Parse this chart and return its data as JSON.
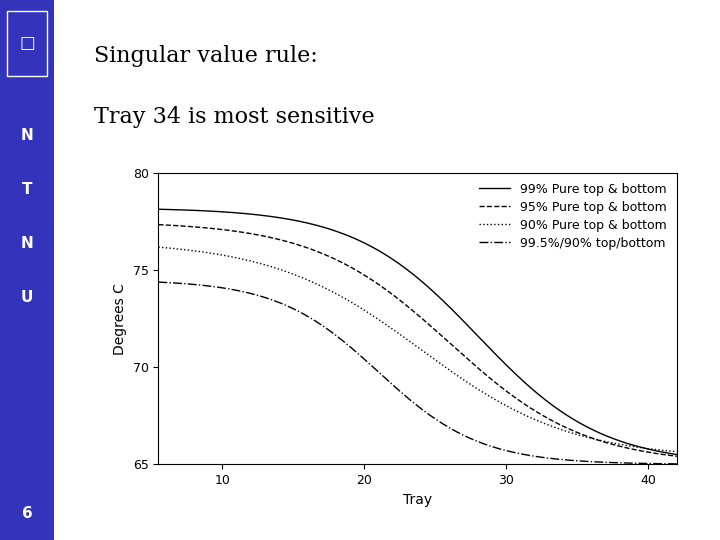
{
  "title_line1": "Singular value rule:",
  "title_line2": "Tray 34 is most sensitive",
  "xlabel": "Tray",
  "ylabel": "Degrees C",
  "xlim": [
    5.5,
    42
  ],
  "ylim": [
    65,
    80
  ],
  "xticks": [
    10,
    20,
    30,
    40
  ],
  "yticks": [
    65,
    70,
    75,
    80
  ],
  "bg_color": "#ffffff",
  "sidebar_color": "#3333bb",
  "slide_number": "6",
  "legend_entries": [
    {
      "label": "99% Pure top & bottom",
      "linestyle": "-"
    },
    {
      "label": "95% Pure top & bottom",
      "linestyle": "--"
    },
    {
      "label": "90% Pure top & bottom",
      "linestyle": ":"
    },
    {
      "label": "99.5%/90% top/bottom",
      "linestyle": "-."
    }
  ],
  "title_fontsize": 16,
  "axis_fontsize": 10,
  "tick_fontsize": 9,
  "legend_fontsize": 9
}
